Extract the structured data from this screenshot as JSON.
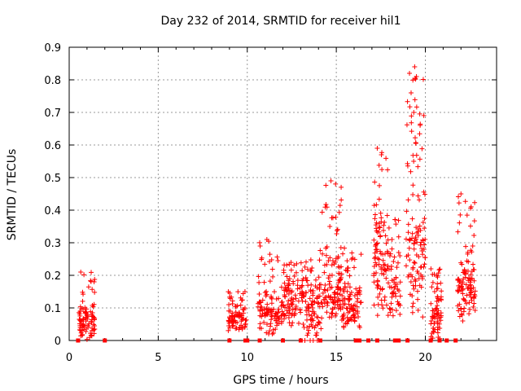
{
  "chart_data": {
    "type": "scatter",
    "title": "Day 232 of 2014, SRMTID for receiver hil1",
    "xlabel": "GPS time / hours",
    "ylabel": "SRMTID / TECUs",
    "xlim": [
      0,
      24
    ],
    "ylim": [
      0,
      0.9
    ],
    "xticks": [
      0,
      5,
      10,
      15,
      20
    ],
    "yticks": [
      0,
      0.1,
      0.2,
      0.3,
      0.4,
      0.5,
      0.6,
      0.7,
      0.8,
      0.9
    ],
    "xtick_labels": [
      "0",
      "5",
      "10",
      "15",
      "20"
    ],
    "ytick_labels": [
      "0",
      "0.1",
      "0.2",
      "0.3",
      "0.4",
      "0.5",
      "0.6",
      "0.7",
      "0.8",
      "0.9"
    ],
    "grid": true,
    "marker": "+",
    "color": "#ff0000",
    "series": [
      {
        "name": "SRMTID",
        "clusters": [
          {
            "x_range": [
              0.55,
              1.45
            ],
            "y_low": 0.0,
            "y_mid": 0.08,
            "y_high": 0.21,
            "count": 90
          },
          {
            "x_range": [
              8.9,
              9.95
            ],
            "y_low": 0.03,
            "y_mid": 0.08,
            "y_high": 0.15,
            "count": 80
          },
          {
            "x_range": [
              10.6,
              11.8
            ],
            "y_low": 0.02,
            "y_mid": 0.12,
            "y_high": 0.31,
            "count": 100
          },
          {
            "x_range": [
              11.9,
              13.2
            ],
            "y_low": 0.04,
            "y_mid": 0.14,
            "y_high": 0.24,
            "count": 110
          },
          {
            "x_range": [
              13.2,
              14.2
            ],
            "y_low": 0.0,
            "y_mid": 0.15,
            "y_high": 0.28,
            "count": 90
          },
          {
            "x_range": [
              14.2,
              15.3
            ],
            "y_low": 0.06,
            "y_mid": 0.2,
            "y_high": 0.49,
            "count": 110
          },
          {
            "x_range": [
              15.3,
              16.4
            ],
            "y_low": 0.04,
            "y_mid": 0.14,
            "y_high": 0.29,
            "count": 100
          },
          {
            "x_range": [
              17.1,
              18.0
            ],
            "y_low": 0.06,
            "y_mid": 0.3,
            "y_high": 0.59,
            "count": 100
          },
          {
            "x_range": [
              18.0,
              18.6
            ],
            "y_low": 0.05,
            "y_mid": 0.22,
            "y_high": 0.38,
            "count": 50
          },
          {
            "x_range": [
              18.9,
              20.0
            ],
            "y_low": 0.05,
            "y_mid": 0.35,
            "y_high": 0.84,
            "count": 120
          },
          {
            "x_range": [
              20.3,
              20.9
            ],
            "y_low": 0.0,
            "y_mid": 0.1,
            "y_high": 0.22,
            "count": 70
          },
          {
            "x_range": [
              21.8,
              22.8
            ],
            "y_low": 0.06,
            "y_mid": 0.2,
            "y_high": 0.45,
            "count": 110
          }
        ],
        "highlight_points": [
          [
            0.65,
            0.21
          ],
          [
            1.4,
            0.18
          ],
          [
            14.7,
            0.49
          ],
          [
            17.3,
            0.59
          ],
          [
            19.4,
            0.84
          ],
          [
            19.5,
            0.81
          ],
          [
            19.2,
            0.76
          ],
          [
            19.35,
            0.7
          ],
          [
            22.0,
            0.45
          ],
          [
            11.1,
            0.31
          ]
        ],
        "zero_points_x": [
          0.5,
          2.0,
          9.0,
          9.9,
          10.0,
          10.7,
          12.0,
          13.0,
          14.1,
          16.1,
          16.3,
          16.8,
          17.3,
          18.3,
          18.5,
          19.0,
          20.3,
          20.8,
          21.2,
          21.7
        ]
      }
    ]
  }
}
